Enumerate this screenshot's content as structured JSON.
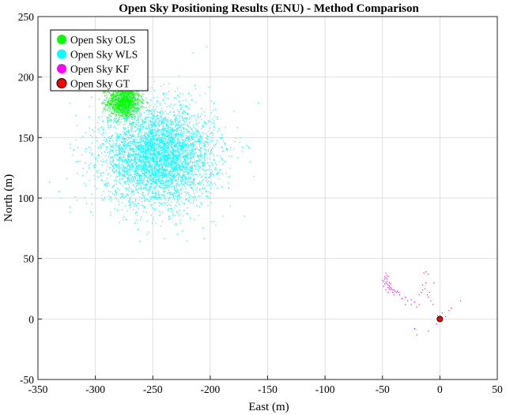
{
  "chart_data": {
    "type": "scatter",
    "title": "Open Sky Positioning Results (ENU) - Method Comparison",
    "xlabel": "East (m)",
    "ylabel": "North (m)",
    "xlim": [
      -350,
      50
    ],
    "ylim": [
      -50,
      250
    ],
    "xticks": [
      -350,
      -300,
      -250,
      -200,
      -150,
      -100,
      -50,
      0,
      50
    ],
    "yticks": [
      -50,
      0,
      50,
      100,
      150,
      200,
      250
    ],
    "grid": true,
    "legend_position": "top-left",
    "series": [
      {
        "name": "Open Sky OLS",
        "color": "#00ff00",
        "marker": "dot",
        "distribution": {
          "center": [
            -275,
            180
          ],
          "spread": [
            7,
            7
          ],
          "count": 1200
        },
        "points": [
          [
            -290,
            185
          ],
          [
            -262,
            190
          ],
          [
            -270,
            200
          ],
          [
            -285,
            170
          ],
          [
            -260,
            175
          ],
          [
            -275,
            195
          ],
          [
            -268,
            165
          ],
          [
            -280,
            205
          ]
        ]
      },
      {
        "name": "Open Sky WLS",
        "color": "#00ffff",
        "marker": "dot",
        "distribution": {
          "center": [
            -245,
            135
          ],
          "spread": [
            24,
            20
          ],
          "count": 4200
        },
        "points": [
          [
            -340,
            113
          ],
          [
            -317,
            148
          ],
          [
            -330,
            100
          ],
          [
            -322,
            88
          ],
          [
            -255,
            70
          ],
          [
            -215,
            220
          ],
          [
            -203,
            225
          ],
          [
            -165,
            130
          ],
          [
            -162,
            118
          ],
          [
            -170,
            85
          ],
          [
            -300,
            200
          ],
          [
            -190,
            150
          ]
        ]
      },
      {
        "name": "Open Sky KF",
        "color": "#ff00ff",
        "marker": "dot",
        "points": [
          [
            -47,
            38
          ],
          [
            -46,
            36
          ],
          [
            -47,
            34
          ],
          [
            -48,
            33
          ],
          [
            -49,
            31
          ],
          [
            -48,
            29
          ],
          [
            -47,
            30
          ],
          [
            -46,
            31
          ],
          [
            -45,
            28
          ],
          [
            -44,
            27
          ],
          [
            -43,
            26
          ],
          [
            -42,
            25
          ],
          [
            -41,
            24
          ],
          [
            -40,
            24
          ],
          [
            -39,
            23
          ],
          [
            -38,
            22
          ],
          [
            -37,
            23
          ],
          [
            -36,
            22
          ],
          [
            -45,
            26
          ],
          [
            -44,
            25
          ],
          [
            -46,
            33
          ],
          [
            -45,
            35
          ],
          [
            -48,
            35
          ],
          [
            -46,
            29
          ],
          [
            -43,
            24
          ],
          [
            -41,
            22
          ],
          [
            -35,
            20
          ],
          [
            -33,
            17
          ],
          [
            -30,
            18
          ],
          [
            -28,
            15
          ],
          [
            -25,
            16
          ],
          [
            -22,
            14
          ],
          [
            -18,
            20
          ],
          [
            -15,
            24
          ],
          [
            -12,
            30
          ],
          [
            -10,
            37
          ],
          [
            -12,
            39
          ],
          [
            -14,
            38
          ],
          [
            -15,
            28
          ],
          [
            -16,
            22
          ],
          [
            -10,
            18
          ],
          [
            -8,
            15
          ],
          [
            -6,
            12
          ],
          [
            -18,
            12
          ],
          [
            -20,
            10
          ],
          [
            -25,
            12
          ],
          [
            -13,
            25
          ],
          [
            -11,
            20
          ],
          [
            -9,
            22
          ],
          [
            -5,
            30
          ],
          [
            -2,
            3
          ],
          [
            5,
            2
          ],
          [
            8,
            7
          ],
          [
            10,
            9
          ],
          [
            18,
            15
          ],
          [
            2,
            5
          ],
          [
            -3,
            -4
          ],
          [
            -10,
            -10
          ],
          [
            -20,
            -13
          ],
          [
            -22,
            -8
          ],
          [
            -30,
            12
          ],
          [
            -40,
            20
          ],
          [
            -50,
            32
          ],
          [
            -49,
            27
          ],
          [
            -47,
            24
          ],
          [
            -45,
            22
          ],
          [
            -44,
            30
          ],
          [
            -43,
            29
          ]
        ]
      },
      {
        "name": "Open Sky GT",
        "color": "#ff0000",
        "marker": "circle",
        "points": [
          [
            0,
            0
          ]
        ]
      }
    ]
  }
}
